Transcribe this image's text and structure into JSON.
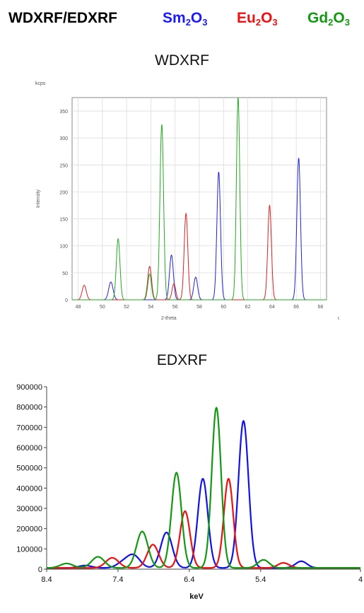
{
  "header": {
    "title": "WDXRF/EDXRF",
    "compounds": [
      {
        "base": "Sm",
        "sub1": "2",
        "mid": "O",
        "sub2": "3",
        "color": "#1a1aff"
      },
      {
        "base": "Eu",
        "sub1": "2",
        "mid": "O",
        "sub2": "3",
        "color": "#ee1111"
      },
      {
        "base": "Gd",
        "sub1": "2",
        "mid": "O",
        "sub2": "3",
        "color": "#119911"
      }
    ]
  },
  "chart_data": [
    {
      "type": "line",
      "title": "WDXRF",
      "xlabel": "2-theta",
      "xunit": "deg",
      "ylabel": "Intensity",
      "yunit": "kcps",
      "xlim": [
        47.5,
        68.5
      ],
      "ylim": [
        0,
        375
      ],
      "xticks": [
        "48",
        "50",
        "52",
        "54",
        "56",
        "58",
        "60",
        "62",
        "64",
        "66",
        "68"
      ],
      "yticks": [
        "0",
        "50",
        "100",
        "150",
        "200",
        "250",
        "300",
        "350"
      ],
      "grid": true,
      "series": [
        {
          "color": "#2222dd",
          "peaks": [
            [
              50.7,
              33,
              0.18
            ],
            [
              55.7,
              83,
              0.16
            ],
            [
              57.7,
              42,
              0.16
            ],
            [
              59.6,
              237,
              0.15
            ],
            [
              66.2,
              263,
              0.15
            ]
          ]
        },
        {
          "color": "#dd2222",
          "peaks": [
            [
              48.5,
              27,
              0.17
            ],
            [
              53.9,
              62,
              0.16
            ],
            [
              55.9,
              30,
              0.15
            ],
            [
              56.9,
              160,
              0.15
            ],
            [
              63.8,
              175,
              0.15
            ]
          ]
        },
        {
          "color": "#22aa22",
          "peaks": [
            [
              51.3,
              113,
              0.15
            ],
            [
              53.9,
              48,
              0.15
            ],
            [
              54.9,
              325,
              0.15
            ],
            [
              61.2,
              375,
              0.14
            ]
          ]
        }
      ]
    },
    {
      "type": "line",
      "title": "EDXRF",
      "xlabel": "keV",
      "xlim": [
        8.4,
        4.0
      ],
      "ylim": [
        0,
        900000
      ],
      "xticks": [
        "8.4",
        "7.4",
        "6.4",
        "5.4",
        "4"
      ],
      "yticks": [
        "0",
        "100000",
        "200000",
        "300000",
        "400000",
        "500000",
        "600000",
        "700000",
        "800000",
        "900000"
      ],
      "grid": false,
      "series": [
        {
          "color": "#1111ee",
          "peaks": [
            [
              7.86,
              12000,
              0.09
            ],
            [
              7.33,
              25000,
              0.09
            ],
            [
              7.18,
              60000,
              0.09
            ],
            [
              6.72,
              175000,
              0.08
            ],
            [
              6.21,
              440000,
              0.07
            ],
            [
              5.64,
              725000,
              0.07
            ],
            [
              4.83,
              33000,
              0.08
            ]
          ]
        },
        {
          "color": "#ee1111",
          "peaks": [
            [
              7.48,
              50000,
              0.09
            ],
            [
              6.91,
              115000,
              0.08
            ],
            [
              6.46,
              280000,
              0.07
            ],
            [
              5.85,
              440000,
              0.065
            ],
            [
              5.08,
              25000,
              0.08
            ]
          ]
        },
        {
          "color": "#119911",
          "peaks": [
            [
              8.12,
              22000,
              0.09
            ],
            [
              7.68,
              55000,
              0.09
            ],
            [
              7.06,
              180000,
              0.08
            ],
            [
              6.58,
              470000,
              0.07
            ],
            [
              6.02,
              790000,
              0.065
            ],
            [
              5.36,
              40000,
              0.08
            ]
          ]
        }
      ]
    }
  ]
}
